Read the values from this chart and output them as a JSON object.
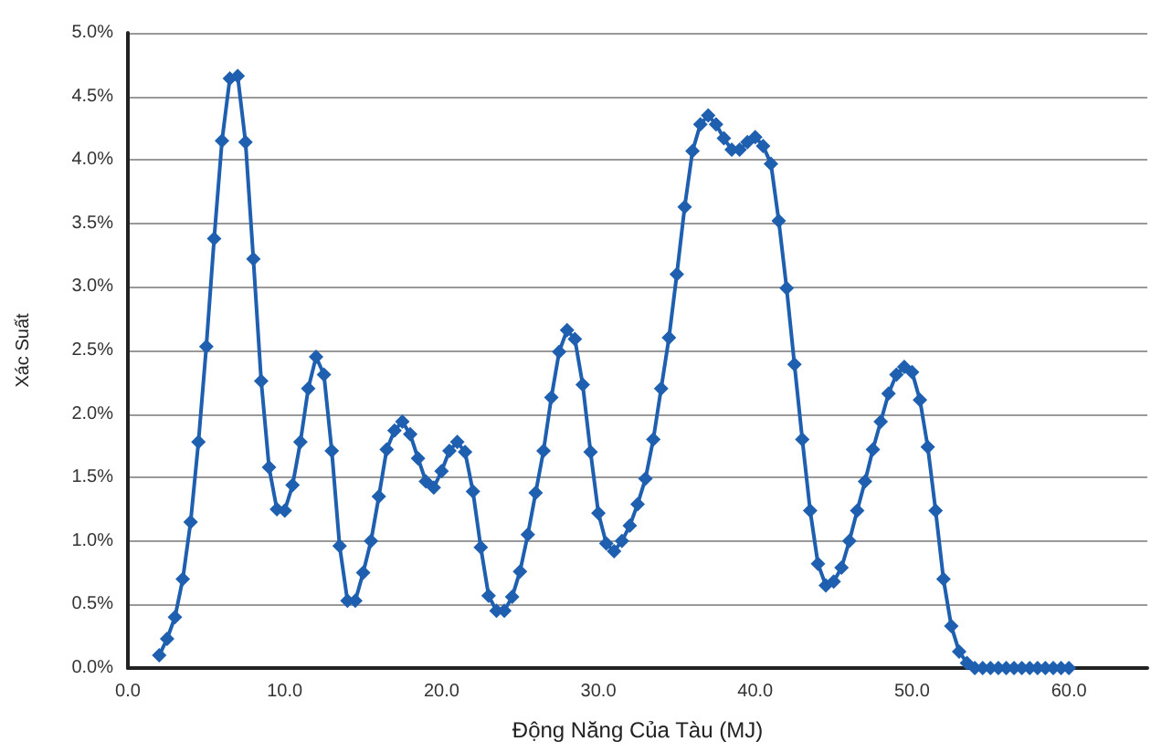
{
  "chart_data": {
    "type": "line",
    "xlabel": "Động Năng Của Tàu (MJ)",
    "ylabel": "Xác Suất",
    "x": [
      2,
      2.5,
      3,
      3.5,
      4,
      4.5,
      5,
      5.5,
      6,
      6.5,
      7,
      7.5,
      8,
      8.5,
      9,
      9.5,
      10,
      10.5,
      11,
      11.5,
      12,
      12.5,
      13,
      13.5,
      14,
      14.5,
      15,
      15.5,
      16,
      16.5,
      17,
      17.5,
      18,
      18.5,
      19,
      19.5,
      20,
      20.5,
      21,
      21.5,
      22,
      22.5,
      23,
      23.5,
      24,
      24.5,
      25,
      25.5,
      26,
      26.5,
      27,
      27.5,
      28,
      28.5,
      29,
      29.5,
      30,
      30.5,
      31,
      31.5,
      32,
      32.5,
      33,
      33.5,
      34,
      34.5,
      35,
      35.5,
      36,
      36.5,
      37,
      37.5,
      38,
      38.5,
      39,
      39.5,
      40,
      40.5,
      41,
      41.5,
      42,
      42.5,
      43,
      43.5,
      44,
      44.5,
      45,
      45.5,
      46,
      46.5,
      47,
      47.5,
      48,
      48.5,
      49,
      49.5,
      50,
      50.5,
      51,
      51.5,
      52,
      52.5,
      53,
      53.5,
      54,
      54.5,
      55,
      55.5,
      56,
      56.5,
      57,
      57.5,
      58,
      58.5,
      59,
      59.5,
      60
    ],
    "series": [
      {
        "color": "#1f5fb0",
        "values": [
          0.1,
          0.23,
          0.4,
          0.7,
          1.15,
          1.78,
          2.53,
          3.38,
          4.15,
          4.64,
          4.66,
          4.14,
          3.22,
          2.26,
          1.58,
          1.25,
          1.24,
          1.44,
          1.78,
          2.2,
          2.45,
          2.31,
          1.71,
          0.96,
          0.53,
          0.53,
          0.75,
          1.0,
          1.35,
          1.72,
          1.87,
          1.94,
          1.84,
          1.65,
          1.47,
          1.42,
          1.55,
          1.71,
          1.78,
          1.7,
          1.39,
          0.95,
          0.57,
          0.45,
          0.45,
          0.56,
          0.76,
          1.05,
          1.38,
          1.71,
          2.13,
          2.49,
          2.66,
          2.59,
          2.23,
          1.7,
          1.22,
          0.98,
          0.92,
          1.0,
          1.12,
          1.29,
          1.49,
          1.8,
          2.2,
          2.6,
          3.1,
          3.63,
          4.07,
          4.28,
          4.35,
          4.28,
          4.17,
          4.08,
          4.08,
          4.14,
          4.18,
          4.11,
          3.97,
          3.52,
          2.99,
          2.39,
          1.8,
          1.24,
          0.82,
          0.65,
          0.68,
          0.79,
          1.0,
          1.24,
          1.47,
          1.72,
          1.94,
          2.16,
          2.31,
          2.37,
          2.33,
          2.11,
          1.74,
          1.24,
          0.7,
          0.33,
          0.13,
          0.04,
          0,
          0,
          0,
          0,
          0,
          0,
          0,
          0,
          0,
          0,
          0,
          0,
          0
        ]
      }
    ],
    "xlim": [
      0,
      65
    ],
    "xticks": [
      {
        "value": 0,
        "label": "0.0"
      },
      {
        "value": 10,
        "label": "10.0"
      },
      {
        "value": 20,
        "label": "20.0"
      },
      {
        "value": 30,
        "label": "30.0"
      },
      {
        "value": 40,
        "label": "40.0"
      },
      {
        "value": 50,
        "label": "50.0"
      },
      {
        "value": 60,
        "label": "60.0"
      }
    ],
    "ylim": [
      0,
      5
    ],
    "yticks": [
      {
        "value": 0,
        "label": "0.0%"
      },
      {
        "value": 0.5,
        "label": "0.5%"
      },
      {
        "value": 1,
        "label": "1.0%"
      },
      {
        "value": 1.5,
        "label": "1.5%"
      },
      {
        "value": 2,
        "label": "2.0%"
      },
      {
        "value": 2.5,
        "label": "2.5%"
      },
      {
        "value": 3,
        "label": "3.0%"
      },
      {
        "value": 3.5,
        "label": "3.5%"
      },
      {
        "value": 4,
        "label": "4.0%"
      },
      {
        "value": 4.5,
        "label": "4.5%"
      },
      {
        "value": 5,
        "label": "5.0%"
      }
    ],
    "grid": "y",
    "marker": "diamond",
    "line_style": "solid"
  }
}
